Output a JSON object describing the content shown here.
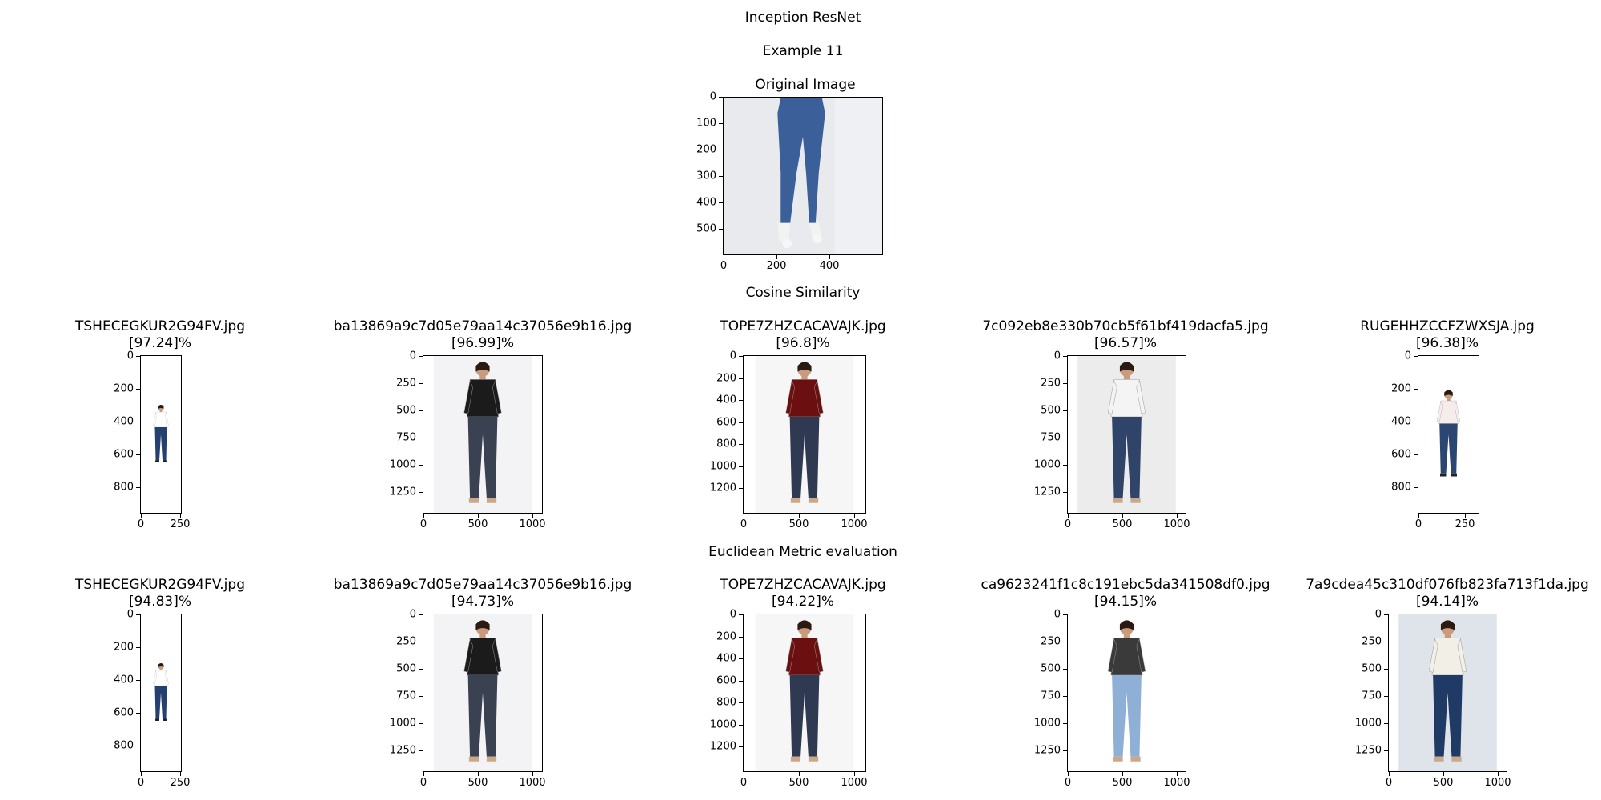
{
  "figure": {
    "suptitle": "Inception ResNet",
    "example_title": "Example 11",
    "original_title": "Original Image",
    "cosine_header": "Cosine Similarity",
    "euclid_header": "Euclidean Metric evaluation"
  },
  "original": {
    "yticks": [
      "0",
      "100",
      "200",
      "300",
      "400",
      "500"
    ],
    "xticks": [
      "0",
      "200",
      "400"
    ]
  },
  "cosine": [
    {
      "file": "TSHECEGKUR2G94FV.jpg",
      "score": "[97.24]%",
      "yticks": [
        "0",
        "200",
        "400",
        "600",
        "800"
      ],
      "xticks": [
        "0",
        "250"
      ],
      "top": "#ffffff",
      "pants": "#24406e",
      "bg": "#ffffff"
    },
    {
      "file": "ba13869a9c7d05e79aa14c37056e9b16.jpg",
      "score": "[96.99]%",
      "yticks": [
        "0",
        "250",
        "500",
        "750",
        "1000",
        "1250"
      ],
      "xticks": [
        "0",
        "500",
        "1000"
      ],
      "top": "#1b1b1b",
      "pants": "#3a4150",
      "bg": "#f3f3f5"
    },
    {
      "file": "TOPE7ZHZCACAVAJK.jpg",
      "score": "[96.8]%",
      "yticks": [
        "0",
        "200",
        "400",
        "600",
        "800",
        "1000",
        "1200"
      ],
      "xticks": [
        "0",
        "500",
        "1000"
      ],
      "top": "#6b0f10",
      "pants": "#2f3a52",
      "bg": "#f6f6f6"
    },
    {
      "file": "7c092eb8e330b70cb5f61bf419dacfa5.jpg",
      "score": "[96.57]%",
      "yticks": [
        "0",
        "250",
        "500",
        "750",
        "1000",
        "1250"
      ],
      "xticks": [
        "0",
        "500",
        "1000"
      ],
      "top": "#f4f4f4",
      "pants": "#2f4468",
      "bg": "#ececec"
    },
    {
      "file": "RUGEHHZCCFZWXSJA.jpg",
      "score": "[96.38]%",
      "yticks": [
        "0",
        "200",
        "400",
        "600",
        "800"
      ],
      "xticks": [
        "0",
        "250"
      ],
      "top": "#f7ecec",
      "pants": "#2c4672",
      "bg": "#ffffff"
    }
  ],
  "euclid": [
    {
      "file": "TSHECEGKUR2G94FV.jpg",
      "score": "[94.83]%",
      "yticks": [
        "0",
        "200",
        "400",
        "600",
        "800"
      ],
      "xticks": [
        "0",
        "250"
      ],
      "top": "#ffffff",
      "pants": "#24406e",
      "bg": "#ffffff"
    },
    {
      "file": "ba13869a9c7d05e79aa14c37056e9b16.jpg",
      "score": "[94.73]%",
      "yticks": [
        "0",
        "250",
        "500",
        "750",
        "1000",
        "1250"
      ],
      "xticks": [
        "0",
        "500",
        "1000"
      ],
      "top": "#1b1b1b",
      "pants": "#3a4150",
      "bg": "#f3f3f5"
    },
    {
      "file": "TOPE7ZHZCACAVAJK.jpg",
      "score": "[94.22]%",
      "yticks": [
        "0",
        "200",
        "400",
        "600",
        "800",
        "1000",
        "1200"
      ],
      "xticks": [
        "0",
        "500",
        "1000"
      ],
      "top": "#6b0f10",
      "pants": "#2f3a52",
      "bg": "#f6f6f6"
    },
    {
      "file": "ca9623241f1c8c191ebc5da341508df0.jpg",
      "score": "[94.15]%",
      "yticks": [
        "0",
        "250",
        "500",
        "750",
        "1000",
        "1250"
      ],
      "xticks": [
        "0",
        "500",
        "1000"
      ],
      "top": "#3a3a3a",
      "pants": "#8fb0d6",
      "bg": "#ffffff"
    },
    {
      "file": "7a9cdea45c310df076fb823fa713f1da.jpg",
      "score": "[94.14]%",
      "yticks": [
        "0",
        "250",
        "500",
        "750",
        "1000",
        "1250"
      ],
      "xticks": [
        "0",
        "500",
        "1000"
      ],
      "top": "#f1efe6",
      "pants": "#203a66",
      "bg": "#dfe4ea"
    }
  ]
}
